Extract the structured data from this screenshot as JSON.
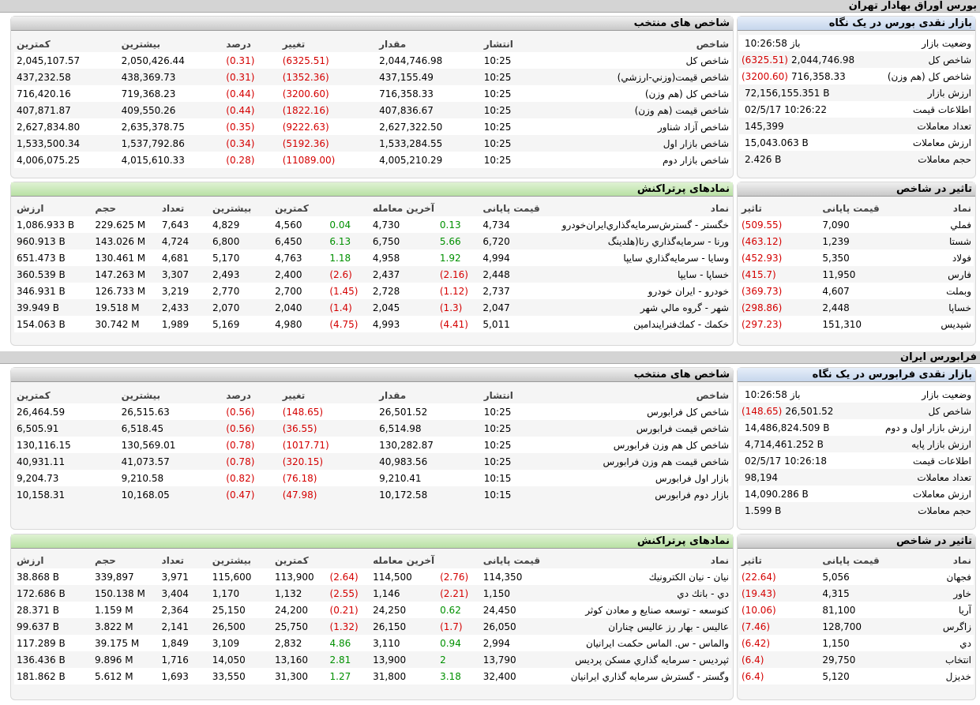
{
  "tehran": {
    "title": "بورس اوراق بهادار تهران",
    "glance": {
      "title": "بازار نقدی بورس در یک نگاه",
      "rows": [
        {
          "label": "وضعیت بازار",
          "value": "باز 10:26:58",
          "change": ""
        },
        {
          "label": "شاخص کل",
          "value": "2,044,746.98",
          "change": "(6325.51)"
        },
        {
          "label": "شاخص کل (هم وزن)",
          "value": "716,358.33",
          "change": "(3200.60)"
        },
        {
          "label": "ارزش بازار",
          "value": "72,156,155.351 B",
          "change": ""
        },
        {
          "label": "اطلاعات قیمت",
          "value": "02/5/17 10:26:22",
          "change": ""
        },
        {
          "label": "تعداد معاملات",
          "value": "145,399",
          "change": ""
        },
        {
          "label": "ارزش معاملات",
          "value": "15,043.063 B",
          "change": ""
        },
        {
          "label": "حجم معاملات",
          "value": "2.426 B",
          "change": ""
        }
      ]
    },
    "indices": {
      "title": "شاخص های منتخب",
      "headers": [
        "شاخص",
        "انتشار",
        "مقدار",
        "تغییر",
        "درصد",
        "بیشترین",
        "کمترین"
      ],
      "rows": [
        [
          "شاخص كل",
          "10:25",
          "2,044,746.98",
          "(6325.51)",
          "(0.31)",
          "2,050,426.44",
          "2,045,107.57"
        ],
        [
          "شاخص قيمت(وزني-ارزشي)",
          "10:25",
          "437,155.49",
          "(1352.36)",
          "(0.31)",
          "438,369.73",
          "437,232.58"
        ],
        [
          "شاخص كل (هم وزن)",
          "10:25",
          "716,358.33",
          "(3200.60)",
          "(0.44)",
          "719,368.23",
          "716,420.16"
        ],
        [
          "شاخص قيمت (هم وزن)",
          "10:25",
          "407,836.67",
          "(1822.16)",
          "(0.44)",
          "409,550.26",
          "407,871.87"
        ],
        [
          "شاخص آزاد شناور",
          "10:25",
          "2,627,322.50",
          "(9222.63)",
          "(0.35)",
          "2,635,378.75",
          "2,627,834.80"
        ],
        [
          "شاخص بازار اول",
          "10:25",
          "1,533,284.55",
          "(5192.36)",
          "(0.34)",
          "1,537,792.86",
          "1,533,500.34"
        ],
        [
          "شاخص بازار دوم",
          "10:25",
          "4,005,210.29",
          "(11089.00)",
          "(0.28)",
          "4,015,610.33",
          "4,006,075.25"
        ]
      ]
    },
    "impact": {
      "title": "تاثیر در شاخص",
      "headers": [
        "نماد",
        "قیمت پایانی",
        "تاثیر"
      ],
      "rows": [
        [
          "فملي",
          "7,090",
          "(509.55)"
        ],
        [
          "شستا",
          "1,239",
          "(463.12)"
        ],
        [
          "فولاد",
          "5,350",
          "(452.93)"
        ],
        [
          "فارس",
          "11,950",
          "(415.7)"
        ],
        [
          "وبملت",
          "4,607",
          "(369.73)"
        ],
        [
          "خساپا",
          "2,448",
          "(298.86)"
        ],
        [
          "شپديس",
          "151,310",
          "(297.23)"
        ]
      ]
    },
    "top": {
      "title": "نمادهای پرتراکنش",
      "headers": [
        "نماد",
        "قیمت پایانی",
        "",
        "آخرین معامله",
        "",
        "کمترین",
        "بیشترین",
        "تعداد",
        "حجم",
        "ارزش"
      ],
      "rows": [
        [
          "خگستر - گسترش‌سرمايه‌گذاري‌ايران‌خودرو",
          "4,734",
          "0.13",
          "4,730",
          "0.04",
          "4,560",
          "4,829",
          "7,643",
          "229.625 M",
          "1,086.933 B"
        ],
        [
          "ورنا - سرمايه‌گذاري رنا(هلدينگ",
          "6,720",
          "5.66",
          "6,750",
          "6.13",
          "6,450",
          "6,800",
          "4,724",
          "143.026 M",
          "960.913 B"
        ],
        [
          "وسايا - سرمايه‌گذاري سايپا",
          "4,994",
          "1.92",
          "4,958",
          "1.18",
          "4,763",
          "5,170",
          "4,681",
          "130.461 M",
          "651.473 B"
        ],
        [
          "خساپا - سايپا",
          "2,448",
          "(2.16)",
          "2,437",
          "(2.6)",
          "2,400",
          "2,493",
          "3,307",
          "147.263 M",
          "360.539 B"
        ],
        [
          "خودرو - ايران‌ خودرو",
          "2,737",
          "(1.12)",
          "2,728",
          "(1.45)",
          "2,700",
          "2,770",
          "3,219",
          "126.733 M",
          "346.931 B"
        ],
        [
          "شهر - گروه مالي شهر",
          "2,047",
          "(1.3)",
          "2,045",
          "(1.4)",
          "2,040",
          "2,070",
          "2,433",
          "19.518 M",
          "39.949 B"
        ],
        [
          "خكمك - كمك‌فنرايندامين",
          "5,011",
          "(4.41)",
          "4,993",
          "(4.75)",
          "4,980",
          "5,169",
          "1,989",
          "30.742 M",
          "154.063 B"
        ]
      ]
    }
  },
  "farabourse": {
    "title": "فرابورس ایران",
    "glance": {
      "title": "بازار نقدی فرابورس در یک نگاه",
      "rows": [
        {
          "label": "وضعیت بازار",
          "value": "باز 10:26:58",
          "change": ""
        },
        {
          "label": "شاخص کل",
          "value": "26,501.52",
          "change": "(148.65)"
        },
        {
          "label": "ارزش بازار اول و دوم",
          "value": "14,486,824.509 B",
          "change": ""
        },
        {
          "label": "ارزش بازار پایه",
          "value": "4,714,461.252 B",
          "change": ""
        },
        {
          "label": "اطلاعات قیمت",
          "value": "02/5/17 10:26:18",
          "change": ""
        },
        {
          "label": "تعداد معاملات",
          "value": "98,194",
          "change": ""
        },
        {
          "label": "ارزش معاملات",
          "value": "14,090.286 B",
          "change": ""
        },
        {
          "label": "حجم معاملات",
          "value": "1.599 B",
          "change": ""
        }
      ]
    },
    "indices": {
      "title": "شاخص های منتخب",
      "headers": [
        "شاخص",
        "انتشار",
        "مقدار",
        "تغییر",
        "درصد",
        "بیشترین",
        "کمترین"
      ],
      "rows": [
        [
          "شاخص کل فرابورس",
          "10:25",
          "26,501.52",
          "(148.65)",
          "(0.56)",
          "26,515.63",
          "26,464.59"
        ],
        [
          "شاخص قیمت فرابورس",
          "10:25",
          "6,514.98",
          "(36.55)",
          "(0.56)",
          "6,518.45",
          "6,505.91"
        ],
        [
          "شاخص کل هم وزن فرابورس",
          "10:25",
          "130,282.87",
          "(1017.71)",
          "(0.78)",
          "130,569.01",
          "130,116.15"
        ],
        [
          "شاخص قیمت هم وزن فرابورس",
          "10:25",
          "40,983.56",
          "(320.15)",
          "(0.78)",
          "41,073.57",
          "40,931.11"
        ],
        [
          "بازار اول فرابورس",
          "10:15",
          "9,210.41",
          "(76.18)",
          "(0.82)",
          "9,210.58",
          "9,204.73"
        ],
        [
          "بازار دوم فرابورس",
          "10:15",
          "10,172.58",
          "(47.98)",
          "(0.47)",
          "10,168.05",
          "10,158.31"
        ]
      ]
    },
    "impact": {
      "title": "تاثیر در شاخص",
      "headers": [
        "نماد",
        "قیمت پایانی",
        "تاثیر"
      ],
      "rows": [
        [
          "فجهان",
          "5,056",
          "(22.64)"
        ],
        [
          "خاور",
          "4,315",
          "(19.43)"
        ],
        [
          "آريا",
          "81,100",
          "(10.06)"
        ],
        [
          "زاگرس",
          "128,700",
          "(7.46)"
        ],
        [
          "دي",
          "1,150",
          "(6.42)"
        ],
        [
          "انتخاب",
          "29,750",
          "(6.4)"
        ],
        [
          "خديزل",
          "5,120",
          "(6.4)"
        ]
      ]
    },
    "top": {
      "title": "نمادهای پرتراکنش",
      "headers": [
        "نماد",
        "قیمت پایانی",
        "",
        "آخرین معامله",
        "",
        "کمترین",
        "بیشترین",
        "تعداد",
        "حجم",
        "ارزش"
      ],
      "rows": [
        [
          "نيان - نيان الكترونيك",
          "114,350",
          "(2.76)",
          "114,500",
          "(2.64)",
          "113,900",
          "115,600",
          "3,971",
          "339,897",
          "38.868 B"
        ],
        [
          "دي - بانك دي",
          "1,150",
          "(2.21)",
          "1,146",
          "(2.55)",
          "1,132",
          "1,170",
          "3,404",
          "150.138 M",
          "172.686 B"
        ],
        [
          "كنوسعه - توسعه صنايع و معادن كوثر",
          "24,450",
          "0.62",
          "24,250",
          "(0.21)",
          "24,200",
          "25,150",
          "2,364",
          "1.159 M",
          "28.371 B"
        ],
        [
          "عاليس - بهار رز عاليس چناران",
          "26,050",
          "(1.7)",
          "26,150",
          "(1.32)",
          "25,750",
          "26,500",
          "2,141",
          "3.822 M",
          "99.637 B"
        ],
        [
          "والماس - س. الماس حكمت ايرانيان",
          "2,994",
          "0.94",
          "3,110",
          "4.86",
          "2,832",
          "3,109",
          "1,849",
          "39.175 M",
          "117.289 B"
        ],
        [
          "ثپرديس - سرمايه گذاري مسكن پرديس",
          "13,790",
          "2",
          "13,900",
          "2.81",
          "13,160",
          "14,050",
          "1,716",
          "9.896 M",
          "136.436 B"
        ],
        [
          "وگستر - گسترش سرمايه گذاري ايرانيان",
          "32,400",
          "3.18",
          "31,800",
          "1.27",
          "31,300",
          "33,550",
          "1,693",
          "5.612 M",
          "181.862 B"
        ]
      ]
    }
  }
}
